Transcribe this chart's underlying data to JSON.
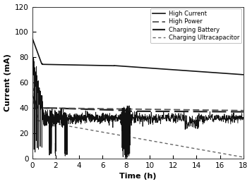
{
  "title": "",
  "xlabel": "Time (h)",
  "ylabel": "Current (mA)",
  "xlim": [
    0,
    18
  ],
  "ylim": [
    0,
    120
  ],
  "xticks": [
    0,
    2,
    4,
    6,
    8,
    10,
    12,
    14,
    16,
    18
  ],
  "yticks": [
    0,
    20,
    40,
    60,
    80,
    100,
    120
  ],
  "legend_labels": [
    "High Current",
    "High Power",
    "Charging Battery",
    "Charging Ultracapacitor"
  ],
  "background_color": "#ffffff",
  "figsize": [
    3.57,
    2.61
  ],
  "dpi": 100
}
